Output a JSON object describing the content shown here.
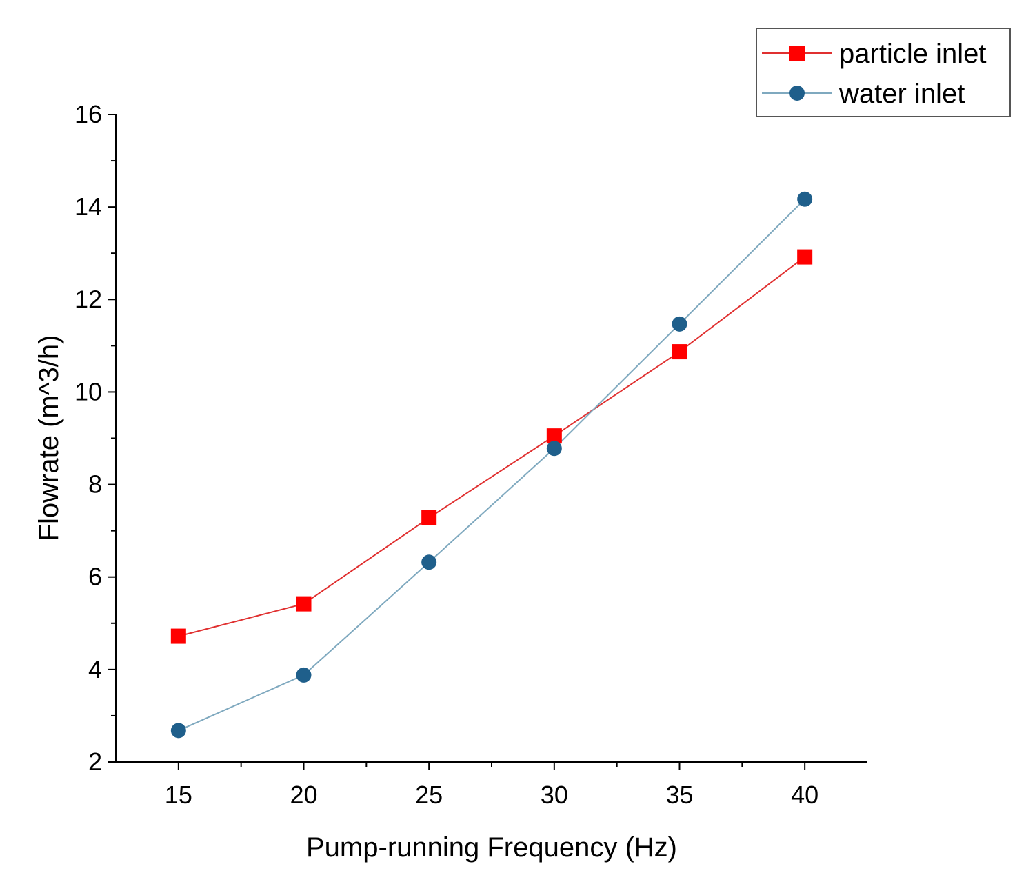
{
  "chart_data": {
    "type": "line",
    "title": "",
    "xlabel": "Pump-running Frequency (Hz)",
    "ylabel": "Flowrate (m^3/h)",
    "x": [
      15,
      20,
      25,
      30,
      35,
      40
    ],
    "xlim": [
      12.5,
      42.5
    ],
    "ylim": [
      2,
      16
    ],
    "xticks": [
      15,
      20,
      25,
      30,
      35,
      40
    ],
    "xtick_labels": [
      "15",
      "20",
      "25",
      "30",
      "35",
      "40"
    ],
    "yticks": [
      2,
      4,
      6,
      8,
      10,
      12,
      14,
      16
    ],
    "ytick_labels": [
      "2",
      "4",
      "6",
      "8",
      "10",
      "12",
      "14",
      "16"
    ],
    "legend_position": "top-right",
    "grid": false,
    "series": [
      {
        "name": "particle inlet",
        "marker": "square",
        "color": "#ff0000",
        "line_color": "#e03030",
        "values": [
          4.72,
          5.42,
          7.28,
          9.05,
          10.87,
          12.92
        ]
      },
      {
        "name": "water inlet",
        "marker": "circle",
        "color": "#1f5f8b",
        "line_color": "#7fa9bf",
        "values": [
          2.68,
          3.88,
          6.32,
          8.78,
          11.47,
          14.17
        ]
      }
    ]
  }
}
